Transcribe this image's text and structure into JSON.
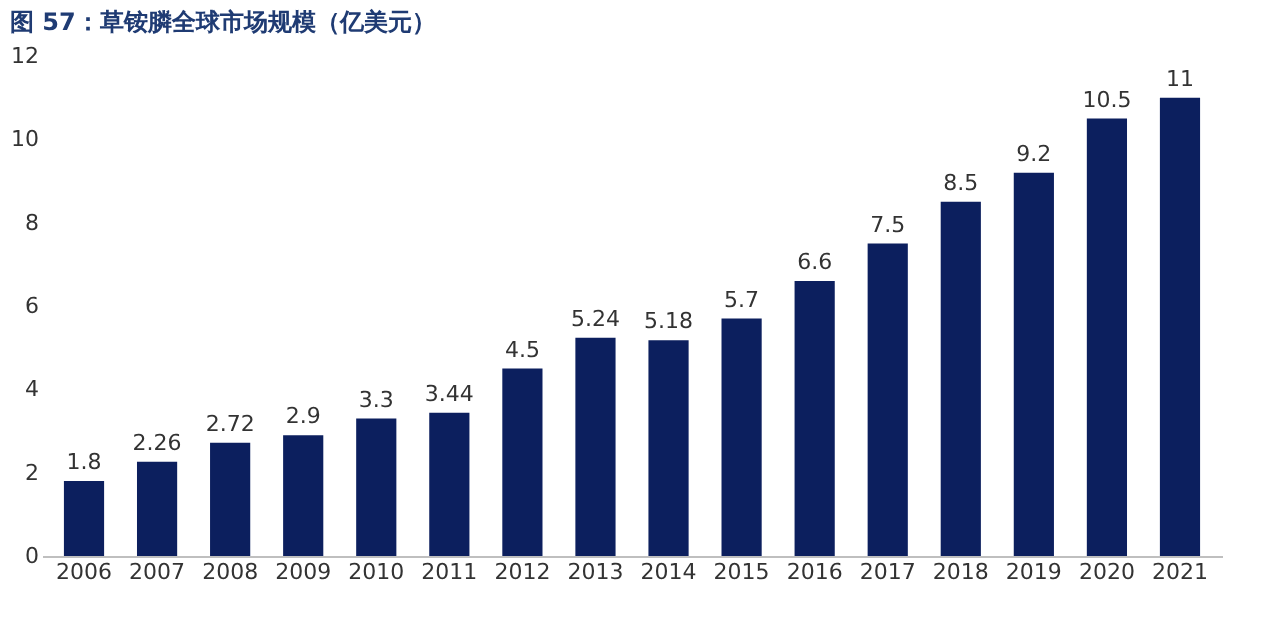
{
  "chart_data": {
    "type": "bar",
    "title": "图 57：草铵膦全球市场规模（亿美元）",
    "categories": [
      "2006",
      "2007",
      "2008",
      "2009",
      "2010",
      "2011",
      "2012",
      "2013",
      "2014",
      "2015",
      "2016",
      "2017",
      "2018",
      "2019",
      "2020",
      "2021"
    ],
    "values": [
      1.8,
      2.26,
      2.72,
      2.9,
      3.3,
      3.44,
      4.5,
      5.24,
      5.18,
      5.7,
      6.6,
      7.5,
      8.5,
      9.2,
      10.5,
      11
    ],
    "color": "#0c1f5e",
    "ylim": [
      0,
      12
    ],
    "yticks": [
      0,
      2,
      4,
      6,
      8,
      10,
      12
    ],
    "grid": false,
    "data_labels": true
  }
}
